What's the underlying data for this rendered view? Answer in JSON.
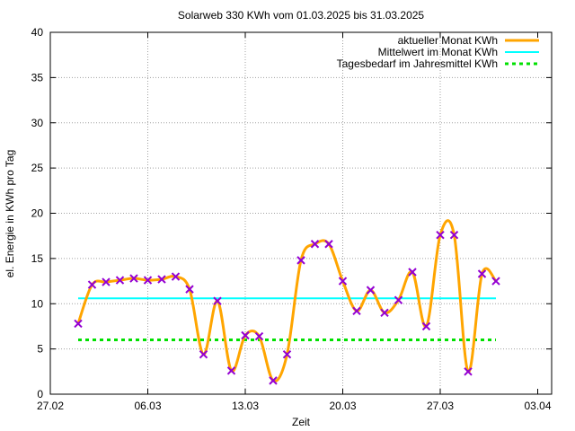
{
  "chart_data": {
    "type": "line",
    "title": "Solarweb 330 KWh vom 01.03.2025 bis 31.03.2025",
    "xlabel": "Zeit",
    "ylabel": "el. Energie in KWh pro Tag",
    "xlim": [
      "27.02",
      "04.04"
    ],
    "ylim": [
      0,
      40
    ],
    "x_ticks": [
      "27.02",
      "06.03",
      "13.03",
      "20.03",
      "27.03",
      "03.04"
    ],
    "y_ticks": [
      0,
      5,
      10,
      15,
      20,
      25,
      30,
      35,
      40
    ],
    "grid": true,
    "legend_position": "top-right",
    "colors": {
      "monat": "#ffa500",
      "mittelwert": "#00ffff",
      "tagesbedarf": "#00e000",
      "marker": "#9400d3"
    },
    "series": [
      {
        "name": "aktueller Monat KWh",
        "x": [
          "01.03",
          "02.03",
          "03.03",
          "04.03",
          "05.03",
          "06.03",
          "07.03",
          "08.03",
          "09.03",
          "10.03",
          "11.03",
          "12.03",
          "13.03",
          "14.03",
          "15.03",
          "16.03",
          "17.03",
          "18.03",
          "19.03",
          "20.03",
          "21.03",
          "22.03",
          "23.03",
          "24.03",
          "25.03",
          "26.03",
          "27.03",
          "28.03",
          "29.03",
          "30.03",
          "31.03"
        ],
        "values": [
          7.8,
          12.1,
          12.4,
          12.6,
          12.8,
          12.6,
          12.7,
          13.0,
          11.6,
          4.4,
          10.3,
          2.6,
          6.5,
          6.4,
          1.5,
          4.4,
          14.8,
          16.6,
          16.6,
          12.5,
          9.2,
          11.5,
          9.0,
          10.4,
          13.5,
          7.5,
          17.6,
          17.6,
          2.5,
          13.3,
          12.5
        ]
      },
      {
        "name": "Mittelwert im Monat KWh",
        "x": [
          "01.03",
          "31.03"
        ],
        "values": [
          10.6,
          10.6
        ]
      },
      {
        "name": "Tagesbedarf im Jahresmittel KWh",
        "x": [
          "01.03",
          "31.03"
        ],
        "values": [
          6.0,
          6.0
        ]
      }
    ]
  }
}
